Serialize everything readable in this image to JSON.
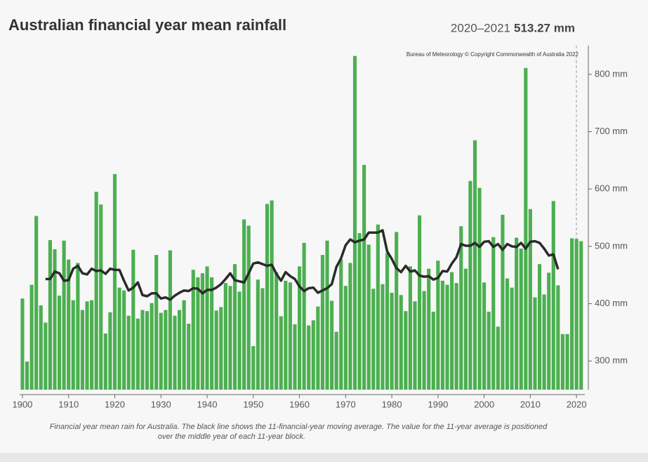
{
  "chart_data": {
    "type": "bar",
    "title": "Australian financial year mean rainfall",
    "headline_period": "2020–2021",
    "headline_value": "513.27 mm",
    "credit": "Bureau of Meteorology © Copyright Commonwealth of Australia 2022",
    "caption": [
      "Financial year mean rain for Australia. The black line shows the 11-financial-year moving average. The value for the 11-year average is positioned",
      "over the middle year of each 11-year block."
    ],
    "x": [
      1900,
      1901,
      1902,
      1903,
      1904,
      1905,
      1906,
      1907,
      1908,
      1909,
      1910,
      1911,
      1912,
      1913,
      1914,
      1915,
      1916,
      1917,
      1918,
      1919,
      1920,
      1921,
      1922,
      1923,
      1924,
      1925,
      1926,
      1927,
      1928,
      1929,
      1930,
      1931,
      1932,
      1933,
      1934,
      1935,
      1936,
      1937,
      1938,
      1939,
      1940,
      1941,
      1942,
      1943,
      1944,
      1945,
      1946,
      1947,
      1948,
      1949,
      1950,
      1951,
      1952,
      1953,
      1954,
      1955,
      1956,
      1957,
      1958,
      1959,
      1960,
      1961,
      1962,
      1963,
      1964,
      1965,
      1966,
      1967,
      1968,
      1969,
      1970,
      1971,
      1972,
      1973,
      1974,
      1975,
      1976,
      1977,
      1978,
      1979,
      1980,
      1981,
      1982,
      1983,
      1984,
      1985,
      1986,
      1987,
      1988,
      1989,
      1990,
      1991,
      1992,
      1993,
      1994,
      1995,
      1996,
      1997,
      1998,
      1999,
      2000,
      2001,
      2002,
      2003,
      2004,
      2005,
      2006,
      2007,
      2008,
      2009,
      2010,
      2011,
      2012,
      2013,
      2014,
      2015,
      2016,
      2017,
      2018,
      2019,
      2020,
      2021
    ],
    "series": [
      {
        "kind": "bar",
        "color": "#4caf50",
        "values": [
          409,
          299,
          433,
          553,
          397,
          367,
          511,
          495,
          414,
          510,
          477,
          406,
          471,
          389,
          404,
          406,
          595,
          573,
          348,
          385,
          626,
          428,
          423,
          379,
          494,
          374,
          389,
          387,
          401,
          485,
          384,
          389,
          493,
          379,
          389,
          406,
          365,
          459,
          446,
          453,
          465,
          446,
          388,
          394,
          436,
          431,
          469,
          421,
          547,
          536,
          326,
          442,
          427,
          574,
          580,
          455,
          378,
          440,
          437,
          364,
          465,
          506,
          362,
          371,
          395,
          485,
          510,
          405,
          351,
          477,
          431,
          471,
          832,
          523,
          642,
          503,
          426,
          538,
          434,
          488,
          419,
          525,
          415,
          387,
          465,
          404,
          554,
          422,
          461,
          386,
          475,
          440,
          433,
          455,
          436,
          535,
          461,
          614,
          685,
          602,
          437,
          386,
          516,
          360,
          555,
          444,
          428,
          515,
          496,
          811,
          565,
          411,
          469,
          416,
          454,
          579,
          432,
          347,
          347,
          514,
          513,
          509
        ]
      },
      {
        "kind": "line",
        "color": "#2b2b2b",
        "values": [
          null,
          null,
          null,
          null,
          null,
          443,
          443,
          456,
          453,
          440,
          441,
          461,
          466,
          453,
          451,
          461,
          457,
          458,
          452,
          461,
          459,
          459,
          440,
          423,
          428,
          437,
          415,
          413,
          418,
          418,
          409,
          411,
          407,
          414,
          419,
          423,
          422,
          427,
          426,
          418,
          424,
          424,
          428,
          434,
          443,
          453,
          441,
          439,
          437,
          453,
          470,
          472,
          469,
          466,
          468,
          452,
          440,
          455,
          448,
          443,
          430,
          422,
          427,
          428,
          419,
          423,
          427,
          434,
          464,
          479,
          502,
          512,
          507,
          510,
          512,
          524,
          524,
          524,
          528,
          491,
          478,
          462,
          455,
          466,
          456,
          458,
          449,
          447,
          448,
          442,
          445,
          457,
          456,
          470,
          481,
          504,
          501,
          501,
          506,
          499,
          508,
          509,
          499,
          504,
          494,
          504,
          500,
          499,
          506,
          496,
          508,
          509,
          506,
          496,
          484,
          486,
          460,
          null,
          null,
          null,
          null,
          null
        ]
      }
    ],
    "xlim": [
      1899.4,
      2021.8
    ],
    "xticks": [
      1900,
      1910,
      1920,
      1930,
      1940,
      1950,
      1960,
      1970,
      1980,
      1990,
      2000,
      2010,
      2020
    ],
    "ylim": [
      250,
      850
    ],
    "yticks": [
      {
        "value": 300,
        "label": "300 mm"
      },
      {
        "value": 400,
        "label": "400 mm"
      },
      {
        "value": 500,
        "label": "500 mm"
      },
      {
        "value": 600,
        "label": "600 mm"
      },
      {
        "value": 700,
        "label": "700 mm"
      },
      {
        "value": 800,
        "label": "800 mm"
      }
    ]
  }
}
